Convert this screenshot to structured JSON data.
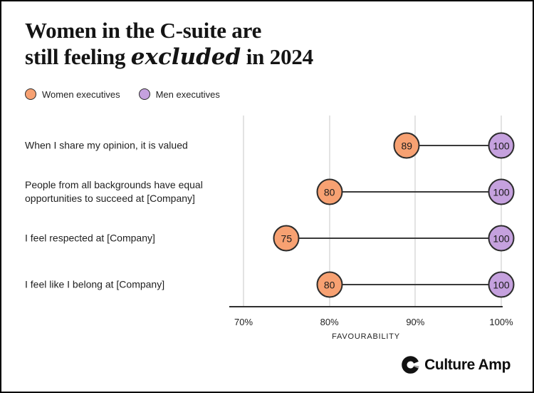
{
  "title": {
    "line1": "Women in the C-suite are",
    "line2_start": "still feeling ",
    "line2_script": "excluded",
    "line2_end": " in 2024"
  },
  "legend": {
    "items": [
      {
        "label": "Women executives",
        "color": "#F7A172"
      },
      {
        "label": "Men executives",
        "color": "#C5A1DE"
      }
    ]
  },
  "chart_data": {
    "type": "dumbbell",
    "categories": [
      "When I share my opinion, it is valued",
      "People from all backgrounds have equal opportunities to succeed at [Company]",
      "I feel respected at [Company]",
      "I feel like I belong at [Company]"
    ],
    "series": [
      {
        "name": "Women executives",
        "values": [
          89,
          80,
          75,
          80
        ],
        "color": "#F7A172"
      },
      {
        "name": "Men executives",
        "values": [
          100,
          100,
          100,
          100
        ],
        "color": "#C5A1DE"
      }
    ],
    "xlabel": "FAVOURABILITY",
    "x_ticks": [
      "70%",
      "80%",
      "90%",
      "100%"
    ],
    "x_tick_values": [
      70,
      80,
      90,
      100
    ],
    "xlim": [
      70,
      100
    ],
    "grid": true,
    "legend_position": "top-left",
    "outline_color": "#2b2b2b",
    "gridline_color": "#e3e3e3"
  },
  "footer": {
    "brand": "Culture Amp"
  }
}
